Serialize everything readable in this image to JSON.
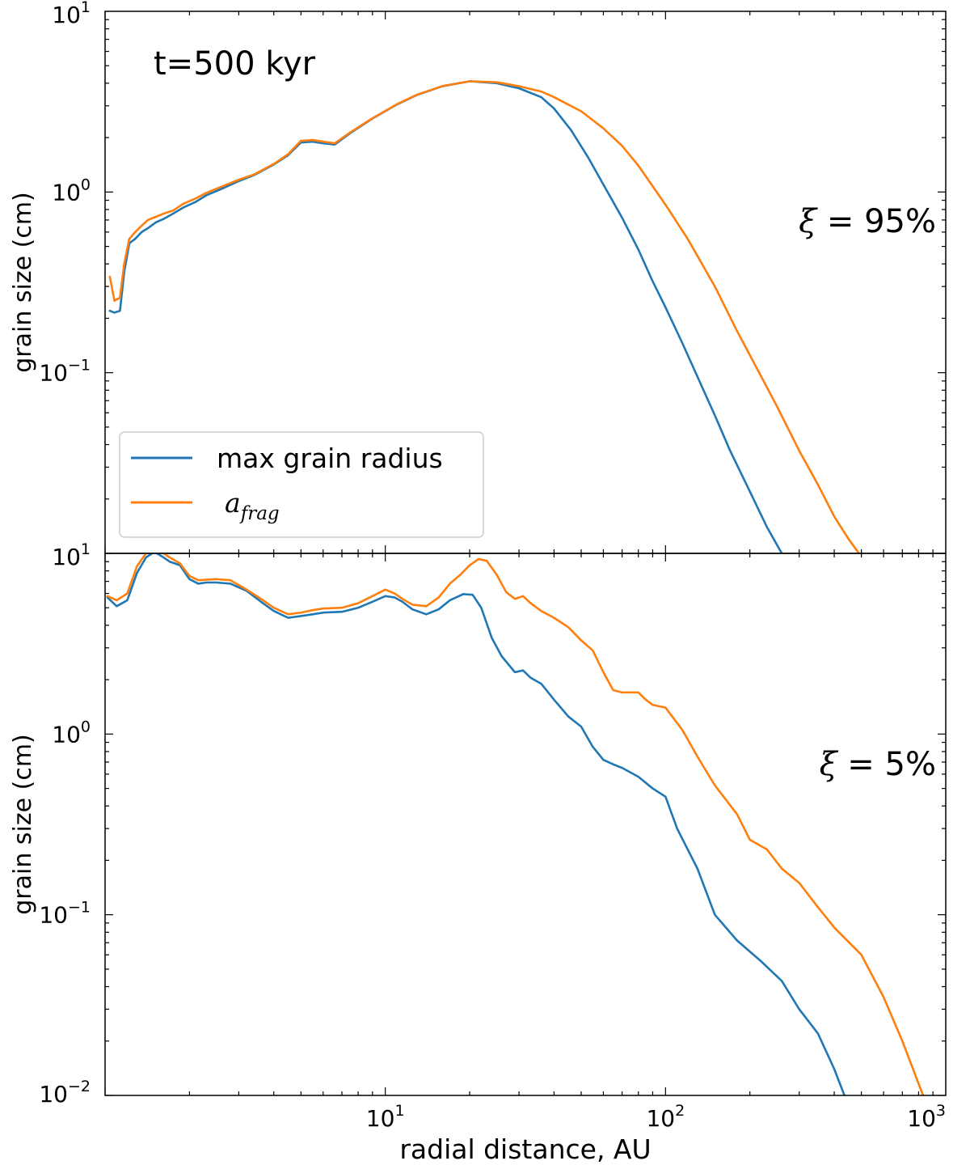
{
  "chart_data": {
    "type": "line",
    "shared_x": {
      "label": "radial distance, AU",
      "scale": "log",
      "range": [
        1.0,
        1000
      ],
      "ticks": [
        {
          "value": 10,
          "base": "10",
          "exp": "1"
        },
        {
          "value": 100,
          "base": "10",
          "exp": "2"
        },
        {
          "value": 1000,
          "base": "10",
          "exp": "3"
        }
      ]
    },
    "panels": [
      {
        "id": "top",
        "title": "t=500 kyr",
        "annotation": {
          "symbol": "ξ",
          "text": " = 95%"
        },
        "ylabel": "grain size (cm)",
        "yscale": "log",
        "ylim": [
          0.01,
          10
        ],
        "yticks": [
          {
            "value": 10,
            "base": "10",
            "exp": "1"
          },
          {
            "value": 1,
            "base": "10",
            "exp": "0"
          },
          {
            "value": 0.1,
            "base": "10",
            "exp": "−1"
          }
        ],
        "legend": {
          "location": "lower-left",
          "entries": [
            {
              "series": "max grain radius",
              "label": "max grain radius"
            },
            {
              "series": "a_frag",
              "label_base": "a",
              "label_sub": "frag"
            }
          ]
        },
        "series": [
          {
            "name": "max grain radius",
            "color": "#1f77b4",
            "x": [
              1.04,
              1.08,
              1.13,
              1.17,
              1.22,
              1.28,
              1.35,
              1.42,
              1.52,
              1.62,
              1.75,
              1.9,
              2.1,
              2.3,
              2.6,
              3.0,
              3.4,
              4.0,
              4.5,
              5.0,
              5.5,
              6.0,
              6.6,
              7.5,
              9.0,
              11,
              13,
              16,
              20,
              25,
              30,
              36,
              40,
              46,
              53,
              60,
              70,
              80,
              90,
              100,
              115,
              130,
              150,
              170,
              200,
              230,
              260
            ],
            "y": [
              0.22,
              0.215,
              0.22,
              0.36,
              0.52,
              0.55,
              0.6,
              0.63,
              0.68,
              0.71,
              0.76,
              0.82,
              0.88,
              0.96,
              1.04,
              1.15,
              1.24,
              1.42,
              1.6,
              1.88,
              1.9,
              1.86,
              1.83,
              2.12,
              2.55,
              3.05,
              3.45,
              3.85,
              4.1,
              4.0,
              3.75,
              3.35,
              2.9,
              2.2,
              1.55,
              1.1,
              0.72,
              0.48,
              0.32,
              0.23,
              0.145,
              0.095,
              0.058,
              0.037,
              0.022,
              0.014,
              0.01
            ]
          },
          {
            "name": "a_frag",
            "color": "#ff7f0e",
            "x": [
              1.04,
              1.08,
              1.13,
              1.17,
              1.22,
              1.28,
              1.35,
              1.42,
              1.52,
              1.62,
              1.75,
              1.9,
              2.1,
              2.3,
              2.6,
              3.0,
              3.4,
              4.0,
              4.5,
              5.0,
              5.5,
              6.0,
              6.6,
              7.5,
              9.0,
              11,
              13,
              16,
              20,
              25,
              30,
              36,
              40,
              50,
              60,
              70,
              80,
              100,
              120,
              150,
              180,
              200,
              250,
              300,
              350,
              400,
              450,
              490
            ],
            "y": [
              0.34,
              0.25,
              0.26,
              0.4,
              0.55,
              0.6,
              0.65,
              0.7,
              0.73,
              0.76,
              0.79,
              0.86,
              0.92,
              0.99,
              1.07,
              1.17,
              1.25,
              1.43,
              1.62,
              1.92,
              1.94,
              1.9,
              1.86,
              2.14,
              2.56,
              3.06,
              3.46,
              3.86,
              4.1,
              4.05,
              3.85,
              3.6,
              3.35,
              2.8,
              2.25,
              1.8,
              1.4,
              0.85,
              0.55,
              0.3,
              0.17,
              0.125,
              0.065,
              0.037,
              0.024,
              0.016,
              0.012,
              0.01
            ]
          }
        ]
      },
      {
        "id": "bottom",
        "annotation": {
          "symbol": "ξ",
          "text": " = 5%"
        },
        "ylabel": "grain size (cm)",
        "yscale": "log",
        "ylim": [
          0.01,
          10
        ],
        "yticks": [
          {
            "value": 10,
            "base": "10",
            "exp": "1"
          },
          {
            "value": 1,
            "base": "10",
            "exp": "0"
          },
          {
            "value": 0.1,
            "base": "10",
            "exp": "−1"
          },
          {
            "value": 0.01,
            "base": "10",
            "exp": "−2"
          }
        ],
        "series": [
          {
            "name": "max grain radius",
            "color": "#1f77b4",
            "x": [
              1.02,
              1.1,
              1.2,
              1.3,
              1.4,
              1.5,
              1.6,
              1.7,
              1.85,
              2.0,
              2.15,
              2.3,
              2.5,
              2.8,
              3.2,
              3.6,
              4.0,
              4.5,
              5.0,
              5.5,
              6.0,
              7.0,
              8.0,
              9.0,
              10.0,
              10.8,
              11.5,
              12.5,
              14.0,
              15.5,
              17.0,
              19.0,
              20.5,
              22.0,
              24.0,
              26.0,
              29.0,
              31.0,
              33.0,
              36.0,
              40.0,
              45.0,
              50.0,
              55.0,
              60.0,
              65.0,
              70.0,
              80.0,
              90.0,
              100.0,
              110.0,
              130.0,
              150.0,
              180.0,
              220.0,
              260.0,
              300.0,
              350.0,
              400.0,
              435.0
            ],
            "y": [
              5.7,
              5.1,
              5.5,
              7.8,
              9.5,
              10.2,
              9.6,
              9.0,
              8.6,
              7.2,
              6.8,
              6.9,
              6.9,
              6.8,
              6.2,
              5.4,
              4.8,
              4.4,
              4.5,
              4.6,
              4.7,
              4.75,
              5.0,
              5.4,
              5.8,
              5.7,
              5.4,
              4.9,
              4.6,
              4.9,
              5.5,
              5.95,
              5.9,
              5.0,
              3.4,
              2.7,
              2.2,
              2.25,
              2.05,
              1.9,
              1.55,
              1.25,
              1.1,
              0.85,
              0.72,
              0.68,
              0.65,
              0.58,
              0.5,
              0.45,
              0.3,
              0.18,
              0.1,
              0.072,
              0.055,
              0.043,
              0.03,
              0.022,
              0.014,
              0.01
            ]
          },
          {
            "name": "a_frag",
            "color": "#ff7f0e",
            "x": [
              1.02,
              1.1,
              1.2,
              1.3,
              1.4,
              1.5,
              1.6,
              1.7,
              1.85,
              2.0,
              2.15,
              2.3,
              2.5,
              2.8,
              3.2,
              3.6,
              4.0,
              4.5,
              5.0,
              5.5,
              6.0,
              7.0,
              8.0,
              9.0,
              10.0,
              10.8,
              11.5,
              12.5,
              14.0,
              15.5,
              17.0,
              18.5,
              20.0,
              21.5,
              23.0,
              25.0,
              27.0,
              29.0,
              31.0,
              33.0,
              36.0,
              40.0,
              45.0,
              50.0,
              55.0,
              60.0,
              65.0,
              70.0,
              80.0,
              85.0,
              90.0,
              100.0,
              115.0,
              130.0,
              150.0,
              180.0,
              200.0,
              230.0,
              260.0,
              300.0,
              350.0,
              400.0,
              500.0,
              600.0,
              700.0,
              830.0
            ],
            "y": [
              5.8,
              5.5,
              6.0,
              8.5,
              10.0,
              10.4,
              10.1,
              9.5,
              8.8,
              7.5,
              7.1,
              7.15,
              7.2,
              7.1,
              6.3,
              5.6,
              5.0,
              4.6,
              4.7,
              4.85,
              4.95,
              5.0,
              5.3,
              5.8,
              6.3,
              6.0,
              5.6,
              5.2,
              5.1,
              5.7,
              6.8,
              7.6,
              8.6,
              9.3,
              9.1,
              7.6,
              6.1,
              5.6,
              5.8,
              5.3,
              4.8,
              4.4,
              3.9,
              3.3,
              2.9,
              2.2,
              1.75,
              1.7,
              1.7,
              1.55,
              1.45,
              1.4,
              1.05,
              0.75,
              0.52,
              0.36,
              0.26,
              0.23,
              0.18,
              0.15,
              0.11,
              0.085,
              0.06,
              0.035,
              0.02,
              0.01
            ]
          }
        ]
      }
    ]
  }
}
